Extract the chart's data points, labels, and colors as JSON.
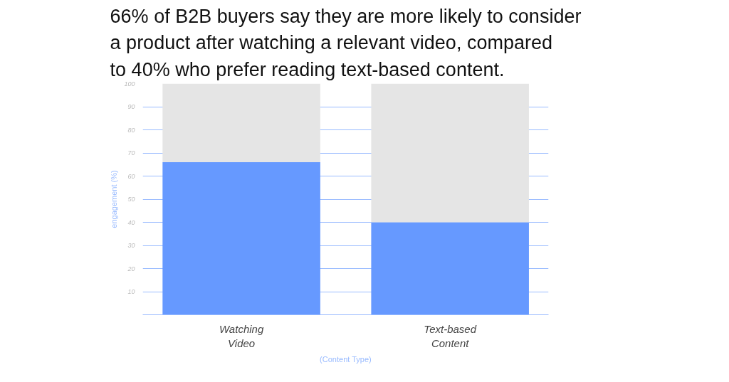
{
  "chart_data": {
    "type": "bar",
    "title": "66% of B2B buyers say they are more likely to consider\na product after watching a relevant video, compared\nto 40% who prefer reading text-based content.",
    "xlabel": "(Content Type)",
    "ylabel": "engagement (%)",
    "categories": [
      "Watching Video",
      "Text-based Content"
    ],
    "stacked": true,
    "series": [
      {
        "color": "#6699ff",
        "values": [
          66,
          40
        ]
      },
      {
        "color": "#e5e5e5",
        "values": [
          34,
          60
        ]
      }
    ],
    "ylim": [
      0,
      100
    ],
    "yticks": [
      10,
      20,
      30,
      40,
      50,
      60,
      70,
      80,
      90,
      100
    ],
    "grid": "y"
  }
}
